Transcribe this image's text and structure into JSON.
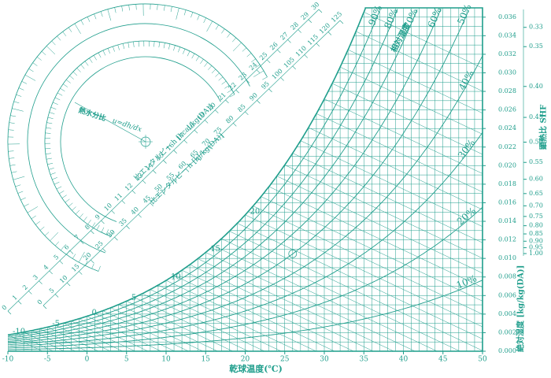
{
  "chart_data": {
    "type": "psychrometric",
    "x_label": "乾球温度(℃)",
    "y_label": "絶対湿度 [kg/kg(DA)]",
    "shf_label": "顕熱比 SHF",
    "rh_label": "相対湿度",
    "enthalpy_kcal_label": "比エンタルピー h [kcal/kg(DA)]",
    "enthalpy_kj_label": "比エンタルピー h [kJ/kg(DA)]",
    "protractor_label": "熱水分比",
    "protractor_formula": "u=dh/dx",
    "color": "#1f9e8c",
    "xlim": [
      -10,
      50
    ],
    "xticks": [
      -10,
      -5,
      0,
      5,
      10,
      15,
      20,
      25,
      30,
      35,
      40,
      45,
      50
    ],
    "ylim": [
      0,
      0.037
    ],
    "yticks": [
      {
        "value": 0,
        "label": "0.000"
      },
      {
        "value": 0.002,
        "label": "0.002"
      },
      {
        "value": 0.004,
        "label": "0.004"
      },
      {
        "value": 0.006,
        "label": "0.006"
      },
      {
        "value": 0.008,
        "label": "0.008"
      },
      {
        "value": 0.01,
        "label": "0.010"
      },
      {
        "value": 0.012,
        "label": "0.012"
      },
      {
        "value": 0.014,
        "label": "0.014"
      },
      {
        "value": 0.016,
        "label": "0.016"
      },
      {
        "value": 0.018,
        "label": "0.018"
      },
      {
        "value": 0.02,
        "label": "0.020"
      },
      {
        "value": 0.022,
        "label": "0.022"
      },
      {
        "value": 0.024,
        "label": "0.024"
      },
      {
        "value": 0.026,
        "label": "0.026"
      },
      {
        "value": 0.028,
        "label": "0.028"
      },
      {
        "value": 0.03,
        "label": "0.030"
      },
      {
        "value": 0.032,
        "label": "0.032"
      },
      {
        "value": 0.034,
        "label": "0.034"
      },
      {
        "value": 0.036,
        "label": "0.036"
      }
    ],
    "rh_curves": [
      {
        "value": 10,
        "label": "10%"
      },
      {
        "value": 20,
        "label": "20%"
      },
      {
        "value": 30,
        "label": "30%"
      },
      {
        "value": 40,
        "label": "40%"
      },
      {
        "value": 50,
        "label": "50%"
      },
      {
        "value": 60,
        "label": "60%"
      },
      {
        "value": 70,
        "label": "70%"
      },
      {
        "value": 80,
        "label": "80%"
      },
      {
        "value": 90,
        "label": "90%"
      }
    ],
    "wet_bulb_ticks": [
      -10,
      -5,
      0,
      5,
      10,
      15,
      20
    ],
    "enthalpy_kcal_ticks": [
      0,
      1,
      2,
      3,
      4,
      5,
      6,
      7,
      8,
      9,
      10,
      11,
      12,
      13,
      14,
      15,
      16,
      17,
      18,
      19,
      20,
      21,
      22,
      23,
      24,
      25,
      26,
      27,
      28,
      29,
      30
    ],
    "enthalpy_kj_ticks": [
      0,
      5,
      10,
      15,
      20,
      25,
      30,
      35,
      40,
      45,
      50,
      55,
      60,
      65,
      70,
      75,
      80,
      85,
      90,
      95,
      100,
      105,
      110,
      115,
      120,
      125
    ],
    "shf_ticks": [
      0.33,
      0.35,
      {
        "value": 0.4,
        "label": "0.40"
      },
      0.45,
      {
        "value": 0.5,
        "label": "0.50"
      },
      0.55,
      {
        "value": 0.6,
        "label": "0.60"
      },
      0.65,
      {
        "value": 0.7,
        "label": "0.70"
      },
      0.75,
      {
        "value": 0.8,
        "label": "0.80"
      },
      0.85,
      {
        "value": 0.9,
        "label": "0.90"
      },
      0.95,
      {
        "value": 1,
        "label": "1.00"
      }
    ]
  }
}
